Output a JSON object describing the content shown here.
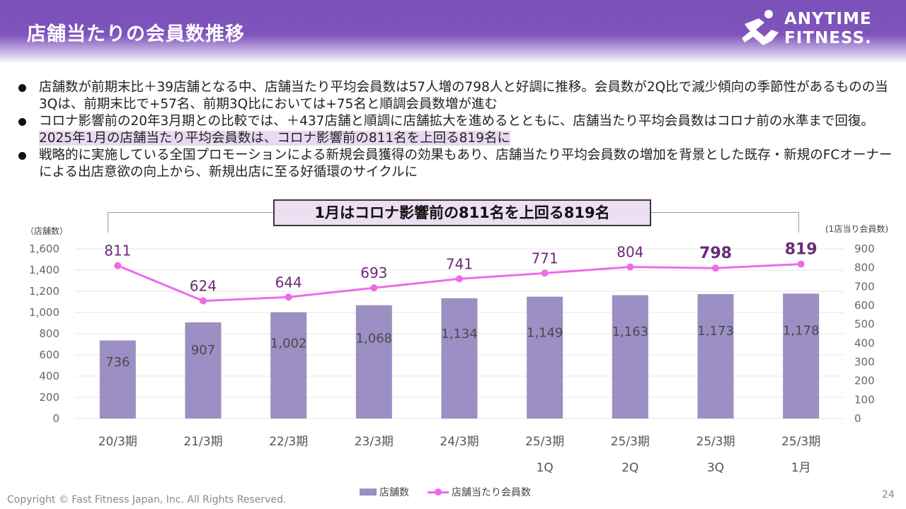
{
  "header": {
    "title": "店舗当たりの会員数推移",
    "logo_line1": "ANYTIME",
    "logo_line2": "FITNESS."
  },
  "bullets": [
    {
      "text": "店舗数が前期末比＋39店舗となる中、店舗当たり平均会員数は57人増の798人と好調に推移。会員数が2Q比で減少傾向の季節性があるものの当3Qは、前期末比で+57名、前期3Q比においては+75名と順調会員数増が進む"
    },
    {
      "text": "コロナ影響前の20年3月期との比較では、＋437店舗と順調に店舗拡大を進めるとともに、店舗当たり平均会員数はコロナ前の水準まで回復。",
      "highlight": "2025年1月の店舗当たり平均会員数は、コロナ影響前の811名を上回る819名に"
    },
    {
      "text": "戦略的に実施している全国プロモーションによる新規会員獲得の効果もあり、店舗当たり平均会員数の増加を背景とした既存・新規のFCオーナーによる出店意欲の向上から、新規出店に至る好循環のサイクルに"
    }
  ],
  "callout": "1月はコロナ影響前の811名を上回る819名",
  "chart_data": {
    "type": "bar+line",
    "categories": [
      "20/3期",
      "21/3期",
      "22/3期",
      "23/3期",
      "24/3期",
      "25/3期\n1Q",
      "25/3期\n2Q",
      "25/3期\n3Q",
      "25/3期\n1月"
    ],
    "series": [
      {
        "name": "店舗数",
        "type": "bar",
        "axis": "left",
        "color": "#9b8fc4",
        "values": [
          736,
          907,
          1002,
          1068,
          1134,
          1149,
          1163,
          1173,
          1178
        ],
        "labels": [
          "736",
          "907",
          "1,002",
          "1,068",
          "1,134",
          "1,149",
          "1,163",
          "1,173",
          "1,178"
        ]
      },
      {
        "name": "店舗当たり会員数",
        "type": "line",
        "axis": "right",
        "color": "#ee6be8",
        "values": [
          811,
          624,
          644,
          693,
          741,
          771,
          804,
          798,
          819
        ],
        "labels": [
          "811",
          "624",
          "644",
          "693",
          "741",
          "771",
          "804",
          "798",
          "819"
        ],
        "bold_labels": [
          false,
          false,
          false,
          false,
          false,
          false,
          false,
          true,
          true
        ]
      }
    ],
    "y_left": {
      "label": "（店舗数）",
      "lim": [
        0,
        1600
      ],
      "ticks": [
        "0",
        "200",
        "400",
        "600",
        "800",
        "1,000",
        "1,200",
        "1,400",
        "1,600"
      ]
    },
    "y_right": {
      "label": "(1店当り会員数)",
      "lim": [
        0,
        900
      ],
      "ticks": [
        "0",
        "100",
        "200",
        "300",
        "400",
        "500",
        "600",
        "700",
        "800",
        "900"
      ]
    },
    "grid": true,
    "legend": "bottom-center"
  },
  "legend": {
    "bar": "店舗数",
    "line": "店舗当たり会員数"
  },
  "footer": {
    "copyright": "Copyright © Fast Fitness Japan, Inc. All Rights Reserved.",
    "page": "24"
  },
  "colors": {
    "brand": "#7a4fb8",
    "label_text": "#6b2a78",
    "axis_text": "#666666"
  }
}
